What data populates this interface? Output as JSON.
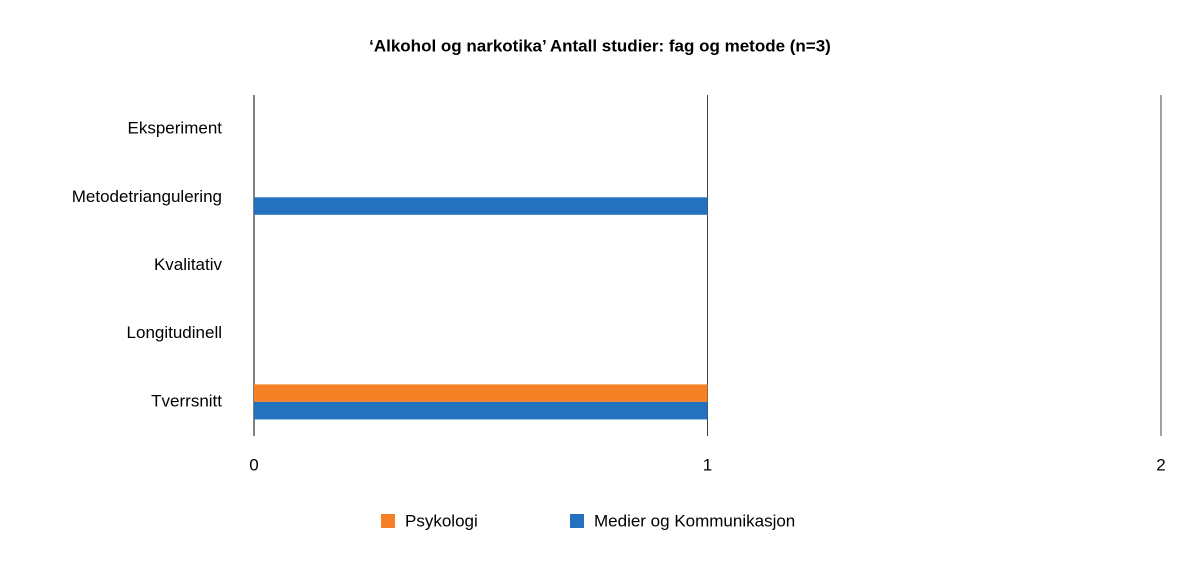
{
  "chart_data": {
    "type": "hbar",
    "title": "‘Alkohol og narkotika’ Antall studier: fag og metode (n=3)",
    "categories": [
      "Eksperiment",
      "Metodetriangulering",
      "Kvalitativ",
      "Longitudinell",
      "Tverrsnitt"
    ],
    "series": [
      {
        "name": "Psykologi",
        "color": "#f58025",
        "values": [
          0,
          0,
          0,
          0,
          1
        ]
      },
      {
        "name": "Medier og Kommunikasjon",
        "color": "#2371bf",
        "values": [
          0,
          1,
          0,
          0,
          1
        ]
      }
    ],
    "xlim": [
      0,
      2
    ],
    "xticks": [
      0,
      1,
      2
    ],
    "grid": true,
    "legend": "bottom"
  }
}
